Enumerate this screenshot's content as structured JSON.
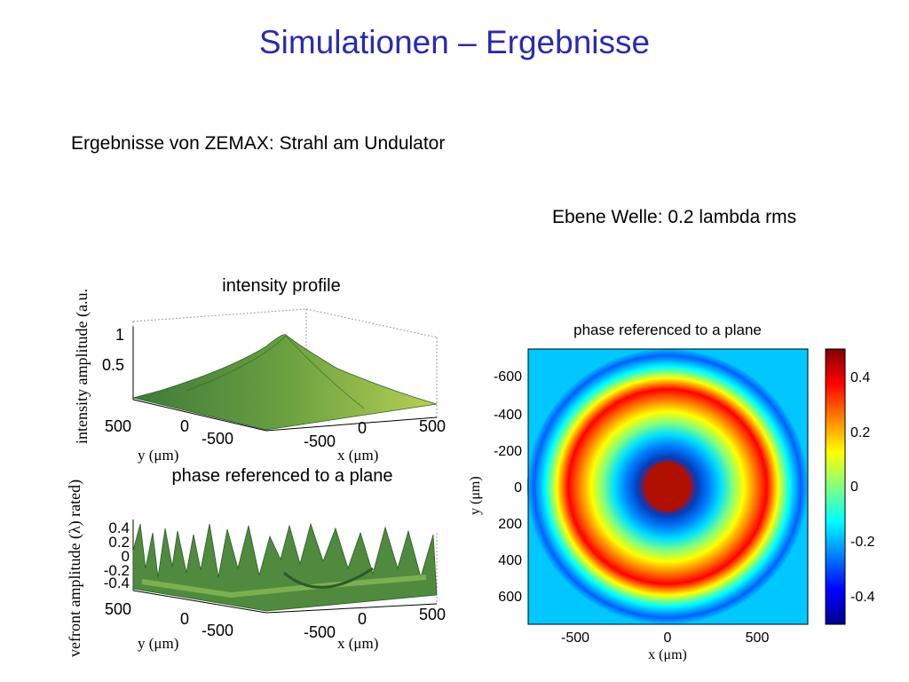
{
  "slide": {
    "title": "Simulationen – Ergebnisse",
    "subtitle": "Ergebnisse von ZEMAX: Strahl am Undulator",
    "caption": "Ebene Welle: 0.2 lambda rms"
  },
  "plot1": {
    "title": "intensity profile",
    "zlabel": "intensity amplitude (a.u.",
    "zticks": [
      "1",
      "0.5"
    ],
    "yticks": [
      "500",
      "0",
      "-500"
    ],
    "xticks": [
      "-500",
      "0",
      "500"
    ],
    "ylabel": "y (μm)",
    "xlabel": "x (μm)"
  },
  "plot2": {
    "title": "phase referenced to a plane",
    "zlabel": "vefront amplitude (λ) rated)",
    "zticks": [
      "0.4",
      "0.2",
      "0",
      "-0.2",
      "-0.4"
    ],
    "yticks": [
      "500",
      "0",
      "-500"
    ],
    "xticks": [
      "-500",
      "0",
      "500"
    ],
    "ylabel": "y (μm)",
    "xlabel": "x (μm)"
  },
  "plot3": {
    "title": "phase referenced to a plane",
    "yticks": [
      "-600",
      "-400",
      "-200",
      "0",
      "200",
      "400",
      "600"
    ],
    "xticks": [
      "-500",
      "0",
      "500"
    ],
    "ylabel": "y (μm)",
    "xlabel": "x (μm)",
    "colorbar_ticks": [
      "0.4",
      "0.2",
      "0",
      "-0.2",
      "-0.4"
    ],
    "colormap": [
      "#00008f",
      "#0000ff",
      "#0080ff",
      "#00ffff",
      "#80ff80",
      "#ffff00",
      "#ff8000",
      "#ff0000",
      "#800000"
    ],
    "surface_color": "#4a8a3a"
  }
}
